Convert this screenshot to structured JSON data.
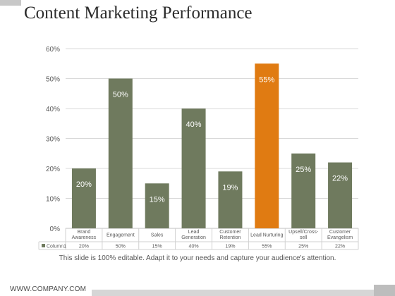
{
  "header": {
    "title": "Content Marketing Performance"
  },
  "note": "This slide is 100% editable. Adapt it to your needs and capture your audience's attention.",
  "footer": {
    "company": "WWW.COMPANY.COM"
  },
  "colors": {
    "bar": "#6f7a5e",
    "highlight": "#e07b12",
    "grid": "#d9d9d9",
    "text": "#595959"
  },
  "chart_data": {
    "type": "bar",
    "title": "",
    "xlabel": "",
    "ylabel": "",
    "ylim": [
      0,
      60
    ],
    "yticks": [
      "0%",
      "10%",
      "20%",
      "30%",
      "40%",
      "50%",
      "60%"
    ],
    "categories": [
      [
        "Brand",
        "Awareness"
      ],
      [
        "Engagement"
      ],
      [
        "Sales"
      ],
      [
        "Lead",
        "Generation"
      ],
      [
        "Customer",
        "Retention"
      ],
      [
        "Lead Nurturing"
      ],
      [
        "Upsell/Cross-",
        "sell"
      ],
      [
        "Customer",
        "Evangelism"
      ]
    ],
    "series": [
      {
        "name": "Column1",
        "values": [
          20,
          50,
          15,
          40,
          19,
          55,
          25,
          22
        ],
        "labels": [
          "20%",
          "50%",
          "15%",
          "40%",
          "19%",
          "55%",
          "25%",
          "22%"
        ]
      }
    ],
    "highlight_index": 5,
    "grid": true,
    "legend": "table-left"
  }
}
